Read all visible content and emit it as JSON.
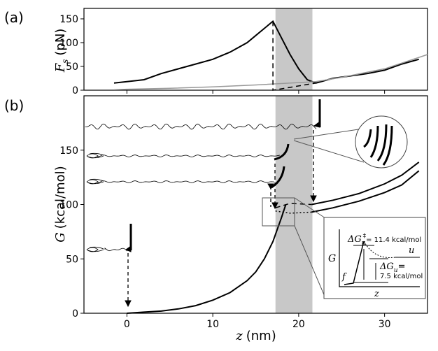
{
  "chart_data": [
    {
      "type": "line",
      "panel_label": "(a)",
      "y_label_symbol": "F",
      "y_label_sub": "s",
      "y_label_unit": "(pN)",
      "xlim": [
        -5,
        35
      ],
      "xticks": [
        0,
        10,
        20,
        30
      ],
      "ylim": [
        0,
        172
      ],
      "yticks": [
        0,
        50,
        100,
        150
      ],
      "band": [
        17.3,
        21.6
      ],
      "band_color": "#c8c8c8",
      "series": [
        {
          "color": "#000000",
          "style": "solid",
          "width": 2,
          "x": [
            -1.5,
            0,
            2,
            4,
            6,
            8,
            10,
            12,
            14,
            15,
            16,
            17,
            18,
            19,
            20,
            21,
            22,
            23,
            24,
            26,
            28,
            30,
            32,
            34
          ],
          "values": [
            15,
            18,
            22,
            35,
            45,
            55,
            65,
            80,
            100,
            115,
            130,
            145,
            110,
            75,
            45,
            22,
            15,
            20,
            25,
            30,
            35,
            42,
            55,
            65
          ]
        },
        {
          "color": "#999999",
          "style": "solid",
          "width": 1.5,
          "x": [
            -1.5,
            0,
            5,
            10,
            15,
            20,
            22,
            25,
            30,
            35
          ],
          "values": [
            1,
            2,
            4,
            7,
            11,
            16,
            18,
            27,
            45,
            75
          ]
        },
        {
          "color": "#000000",
          "style": "dashed",
          "width": 1.5,
          "x": [
            17,
            17,
            22
          ],
          "values": [
            145,
            0,
            15
          ]
        }
      ]
    },
    {
      "type": "line",
      "panel_label": "(b)",
      "y_label_symbol": "G",
      "y_label_unit": "(kcal/mol)",
      "x_label_symbol": "z",
      "x_label_unit": "(nm)",
      "xlim": [
        -5,
        35
      ],
      "xticks": [
        0,
        10,
        20,
        30
      ],
      "ylim": [
        0,
        200
      ],
      "yticks": [
        0,
        50,
        100,
        150
      ],
      "band": [
        17.3,
        21.6
      ],
      "band_color": "#c8c8c8",
      "series": [
        {
          "color": "#000000",
          "style": "solid",
          "width": 2,
          "x": [
            0,
            2,
            4,
            6,
            8,
            10,
            12,
            14,
            15,
            16,
            17,
            18,
            18.5
          ],
          "values": [
            0,
            1,
            2,
            4,
            7,
            12,
            19,
            30,
            38,
            50,
            66,
            88,
            100
          ]
        },
        {
          "color": "#000000",
          "style": "solid",
          "width": 2,
          "x": [
            21.5,
            24,
            27,
            30,
            32,
            34
          ],
          "values": [
            100,
            104,
            110,
            119,
            127,
            139
          ]
        },
        {
          "color": "#000000",
          "style": "solid",
          "width": 2,
          "x": [
            21.5,
            24,
            27,
            30,
            32,
            34
          ],
          "values": [
            93,
            97,
            103,
            111,
            118,
            131
          ]
        },
        {
          "color": "#000000",
          "style": "dashed",
          "width": 1.5,
          "x": [
            17.3,
            19,
            21.5
          ],
          "values": [
            97,
            101,
            100
          ]
        },
        {
          "color": "#000000",
          "style": "dotted",
          "width": 1.5,
          "x": [
            17.3,
            19,
            21.5
          ],
          "values": [
            94,
            92,
            93
          ]
        }
      ],
      "inset": {
        "dg_symbol": "ΔG",
        "dg_sub": "u",
        "dg_barrier_sup": "‡",
        "dg_barrier": "= 11.4 kcal/mol",
        "dg_eq": "=",
        "dg_value": "7.5 kcal/mol",
        "g_axis": "G",
        "z_axis": "z",
        "unfolded": "u",
        "folded": "f"
      }
    }
  ]
}
